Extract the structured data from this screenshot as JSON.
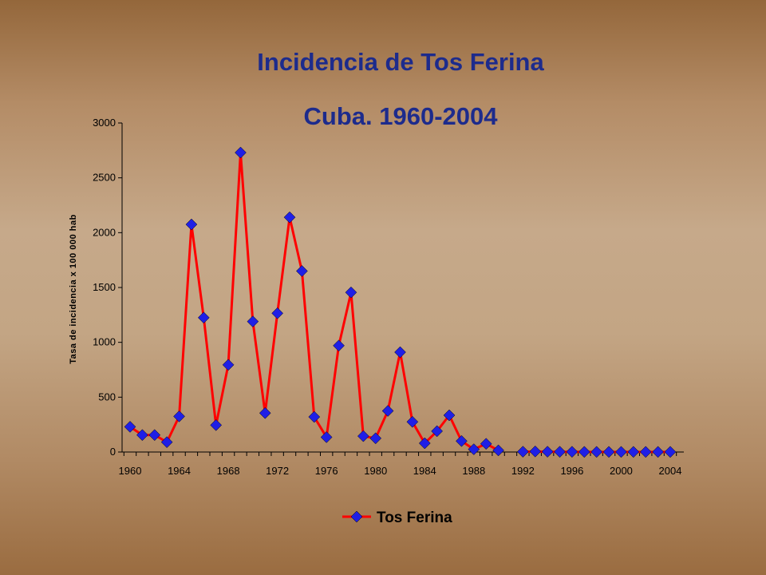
{
  "chart_data": {
    "type": "line",
    "title": "Incidencia de Tos Ferina",
    "subtitle": "Cuba. 1960-2004",
    "xlabel": "",
    "ylabel": "Tasa de incidencia x 100 000 hab",
    "xlim": [
      1960,
      2004
    ],
    "ylim": [
      0,
      3000
    ],
    "xticks": [
      "1960",
      "1964",
      "1968",
      "1972",
      "1976",
      "1980",
      "1984",
      "1988",
      "1992",
      "1996",
      "2000",
      "2004"
    ],
    "yticks": [
      "0",
      "500",
      "1000",
      "1500",
      "2000",
      "2500",
      "3000"
    ],
    "grid": false,
    "legend": "bottom",
    "series": [
      {
        "name": "Tos Ferina",
        "line_color": "#ff0000",
        "marker_color": "#1f1fe6",
        "marker": "diamond",
        "segments": [
          {
            "x": [
              1960,
              1961,
              1962,
              1963,
              1964,
              1965,
              1966,
              1967,
              1968,
              1969,
              1970,
              1971,
              1972,
              1973,
              1974,
              1975,
              1976,
              1977,
              1978,
              1979,
              1980,
              1981,
              1982,
              1983,
              1984,
              1985,
              1986,
              1987,
              1988,
              1989,
              1990
            ],
            "y": [
              230,
              155,
              155,
              90,
              325,
              2075,
              1225,
              245,
              795,
              2730,
              1190,
              355,
              1265,
              2140,
              1650,
              320,
              135,
              970,
              1455,
              145,
              125,
              375,
              910,
              275,
              80,
              190,
              335,
              100,
              25,
              75,
              15
            ]
          },
          {
            "x": [
              1992,
              1993,
              1994,
              1995,
              1996,
              1997,
              1998,
              1999,
              2000,
              2001,
              2002,
              2003,
              2004
            ],
            "y": [
              3,
              5,
              3,
              2,
              2,
              1,
              1,
              1,
              1,
              1,
              1,
              1,
              1
            ]
          }
        ]
      }
    ]
  }
}
